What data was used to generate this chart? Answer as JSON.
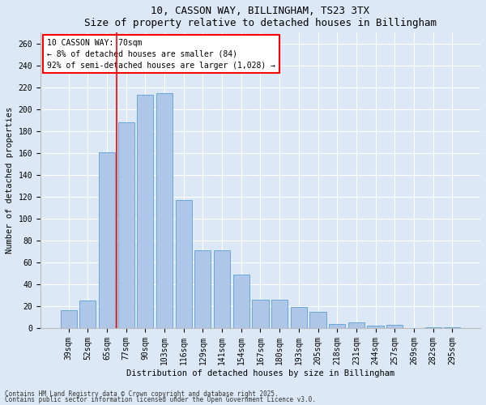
{
  "title1": "10, CASSON WAY, BILLINGHAM, TS23 3TX",
  "title2": "Size of property relative to detached houses in Billingham",
  "xlabel": "Distribution of detached houses by size in Billingham",
  "ylabel": "Number of detached properties",
  "categories": [
    "39sqm",
    "52sqm",
    "65sqm",
    "77sqm",
    "90sqm",
    "103sqm",
    "116sqm",
    "129sqm",
    "141sqm",
    "154sqm",
    "167sqm",
    "180sqm",
    "193sqm",
    "205sqm",
    "218sqm",
    "231sqm",
    "244sqm",
    "257sqm",
    "269sqm",
    "282sqm",
    "295sqm"
  ],
  "values": [
    16,
    25,
    161,
    188,
    213,
    215,
    117,
    71,
    71,
    49,
    26,
    26,
    19,
    15,
    4,
    5,
    2,
    3,
    0,
    1,
    1
  ],
  "bar_color": "#aec6e8",
  "bar_edge_color": "#5a9fd4",
  "red_line_x": 2.5,
  "ylim": [
    0,
    270
  ],
  "yticks": [
    0,
    20,
    40,
    60,
    80,
    100,
    120,
    140,
    160,
    180,
    200,
    220,
    240,
    260
  ],
  "annotation_text": "10 CASSON WAY: 70sqm\n← 8% of detached houses are smaller (84)\n92% of semi-detached houses are larger (1,028) →",
  "footnote1": "Contains HM Land Registry data © Crown copyright and database right 2025.",
  "footnote2": "Contains public sector information licensed under the Open Government Licence v3.0.",
  "background_color": "#dce8f5",
  "plot_background_color": "#dce8f5",
  "grid_color": "#ffffff",
  "title_fontsize": 9,
  "label_fontsize": 7.5,
  "tick_fontsize": 7,
  "ylabel_fontsize": 7.5
}
